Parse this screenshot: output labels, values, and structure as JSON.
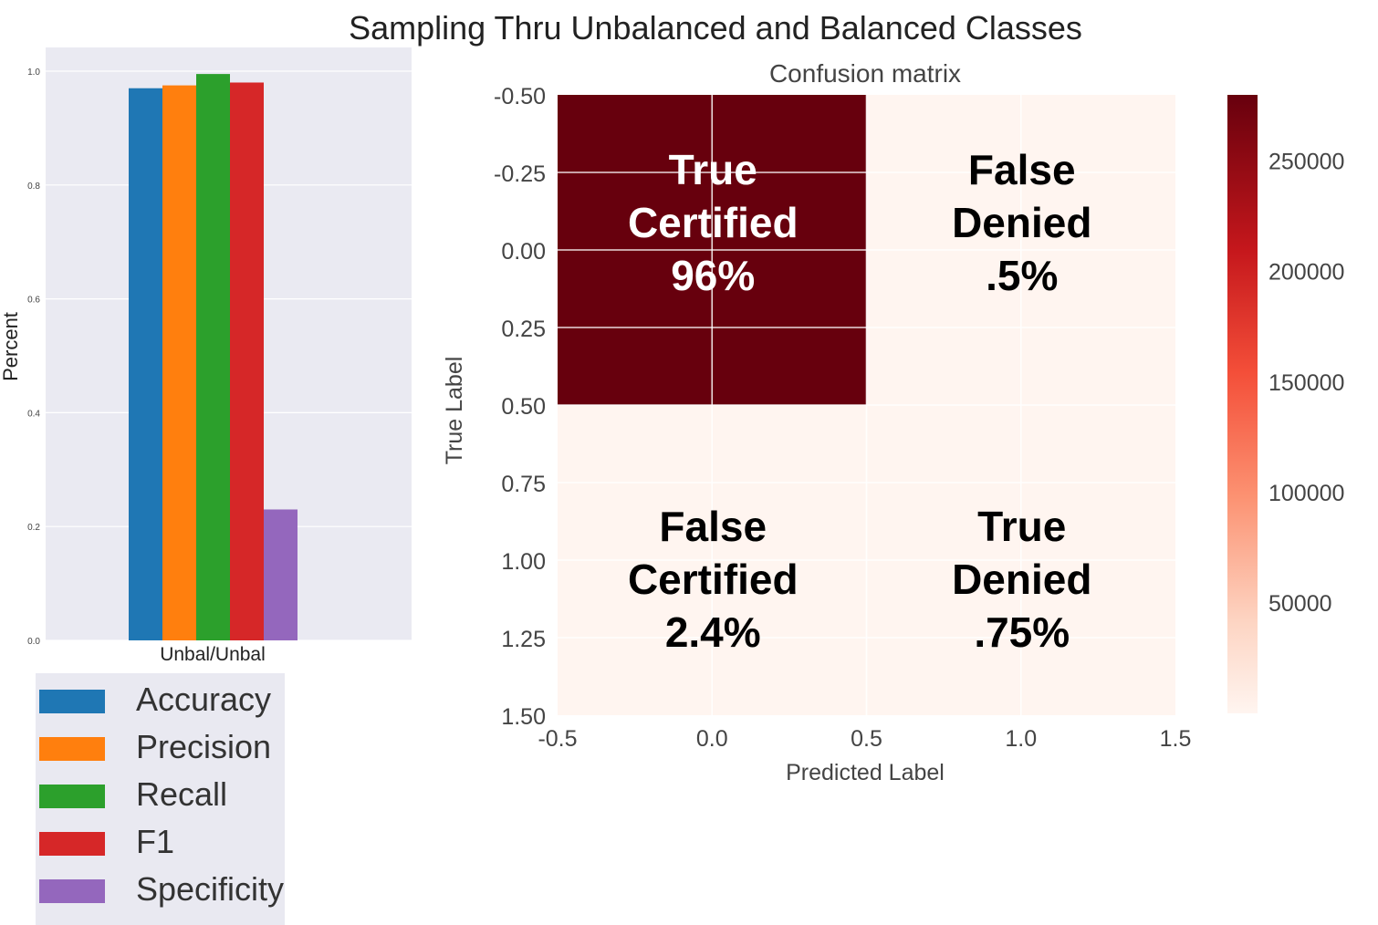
{
  "title": "Sampling Thru Unbalanced and Balanced Classes",
  "colors": {
    "accuracy": "#1f77b4",
    "precision": "#ff7f0e",
    "recall": "#2ca02c",
    "f1": "#d62728",
    "specificity": "#9467bd",
    "plot_bg": "#eaeaf2",
    "heat_high": "#67000d",
    "heat_low": "#fff5f0"
  },
  "chart_data": [
    {
      "type": "bar",
      "categories": [
        "Unbal/Unbal"
      ],
      "series": [
        {
          "name": "Accuracy",
          "values": [
            0.97
          ]
        },
        {
          "name": "Precision",
          "values": [
            0.975
          ]
        },
        {
          "name": "Recall",
          "values": [
            0.995
          ]
        },
        {
          "name": "F1",
          "values": [
            0.98
          ]
        },
        {
          "name": "Specificity",
          "values": [
            0.23
          ]
        }
      ],
      "ylabel": "Percent",
      "ylim": [
        0,
        1.0
      ],
      "yticks": [
        "0.0",
        "0.2",
        "0.4",
        "0.6",
        "0.8",
        "1.0"
      ],
      "grid": true,
      "legend": "bottom-left"
    },
    {
      "type": "heatmap",
      "title": "Confusion matrix",
      "xlabel": "Predicted Label",
      "ylabel": "True Label",
      "xticks": [
        "-0.5",
        "0.0",
        "0.5",
        "1.0",
        "1.5"
      ],
      "yticks": [
        "-0.50",
        "-0.25",
        "0.00",
        "0.25",
        "0.50",
        "0.75",
        "1.00",
        "1.25",
        "1.50"
      ],
      "cells": [
        {
          "row": 0,
          "col": 0,
          "lines": [
            "True",
            "Certified",
            "96%"
          ],
          "level": 1.0
        },
        {
          "row": 0,
          "col": 1,
          "lines": [
            "False",
            "Denied",
            ".5%"
          ],
          "level": 0.0
        },
        {
          "row": 1,
          "col": 0,
          "lines": [
            "False",
            "Certified",
            "2.4%"
          ],
          "level": 0.0
        },
        {
          "row": 1,
          "col": 1,
          "lines": [
            "True",
            "Denied",
            ".75%"
          ],
          "level": 0.0
        }
      ],
      "colorbar": {
        "range": [
          0,
          280000
        ],
        "ticks": [
          "50000",
          "100000",
          "150000",
          "200000",
          "250000"
        ]
      }
    }
  ]
}
